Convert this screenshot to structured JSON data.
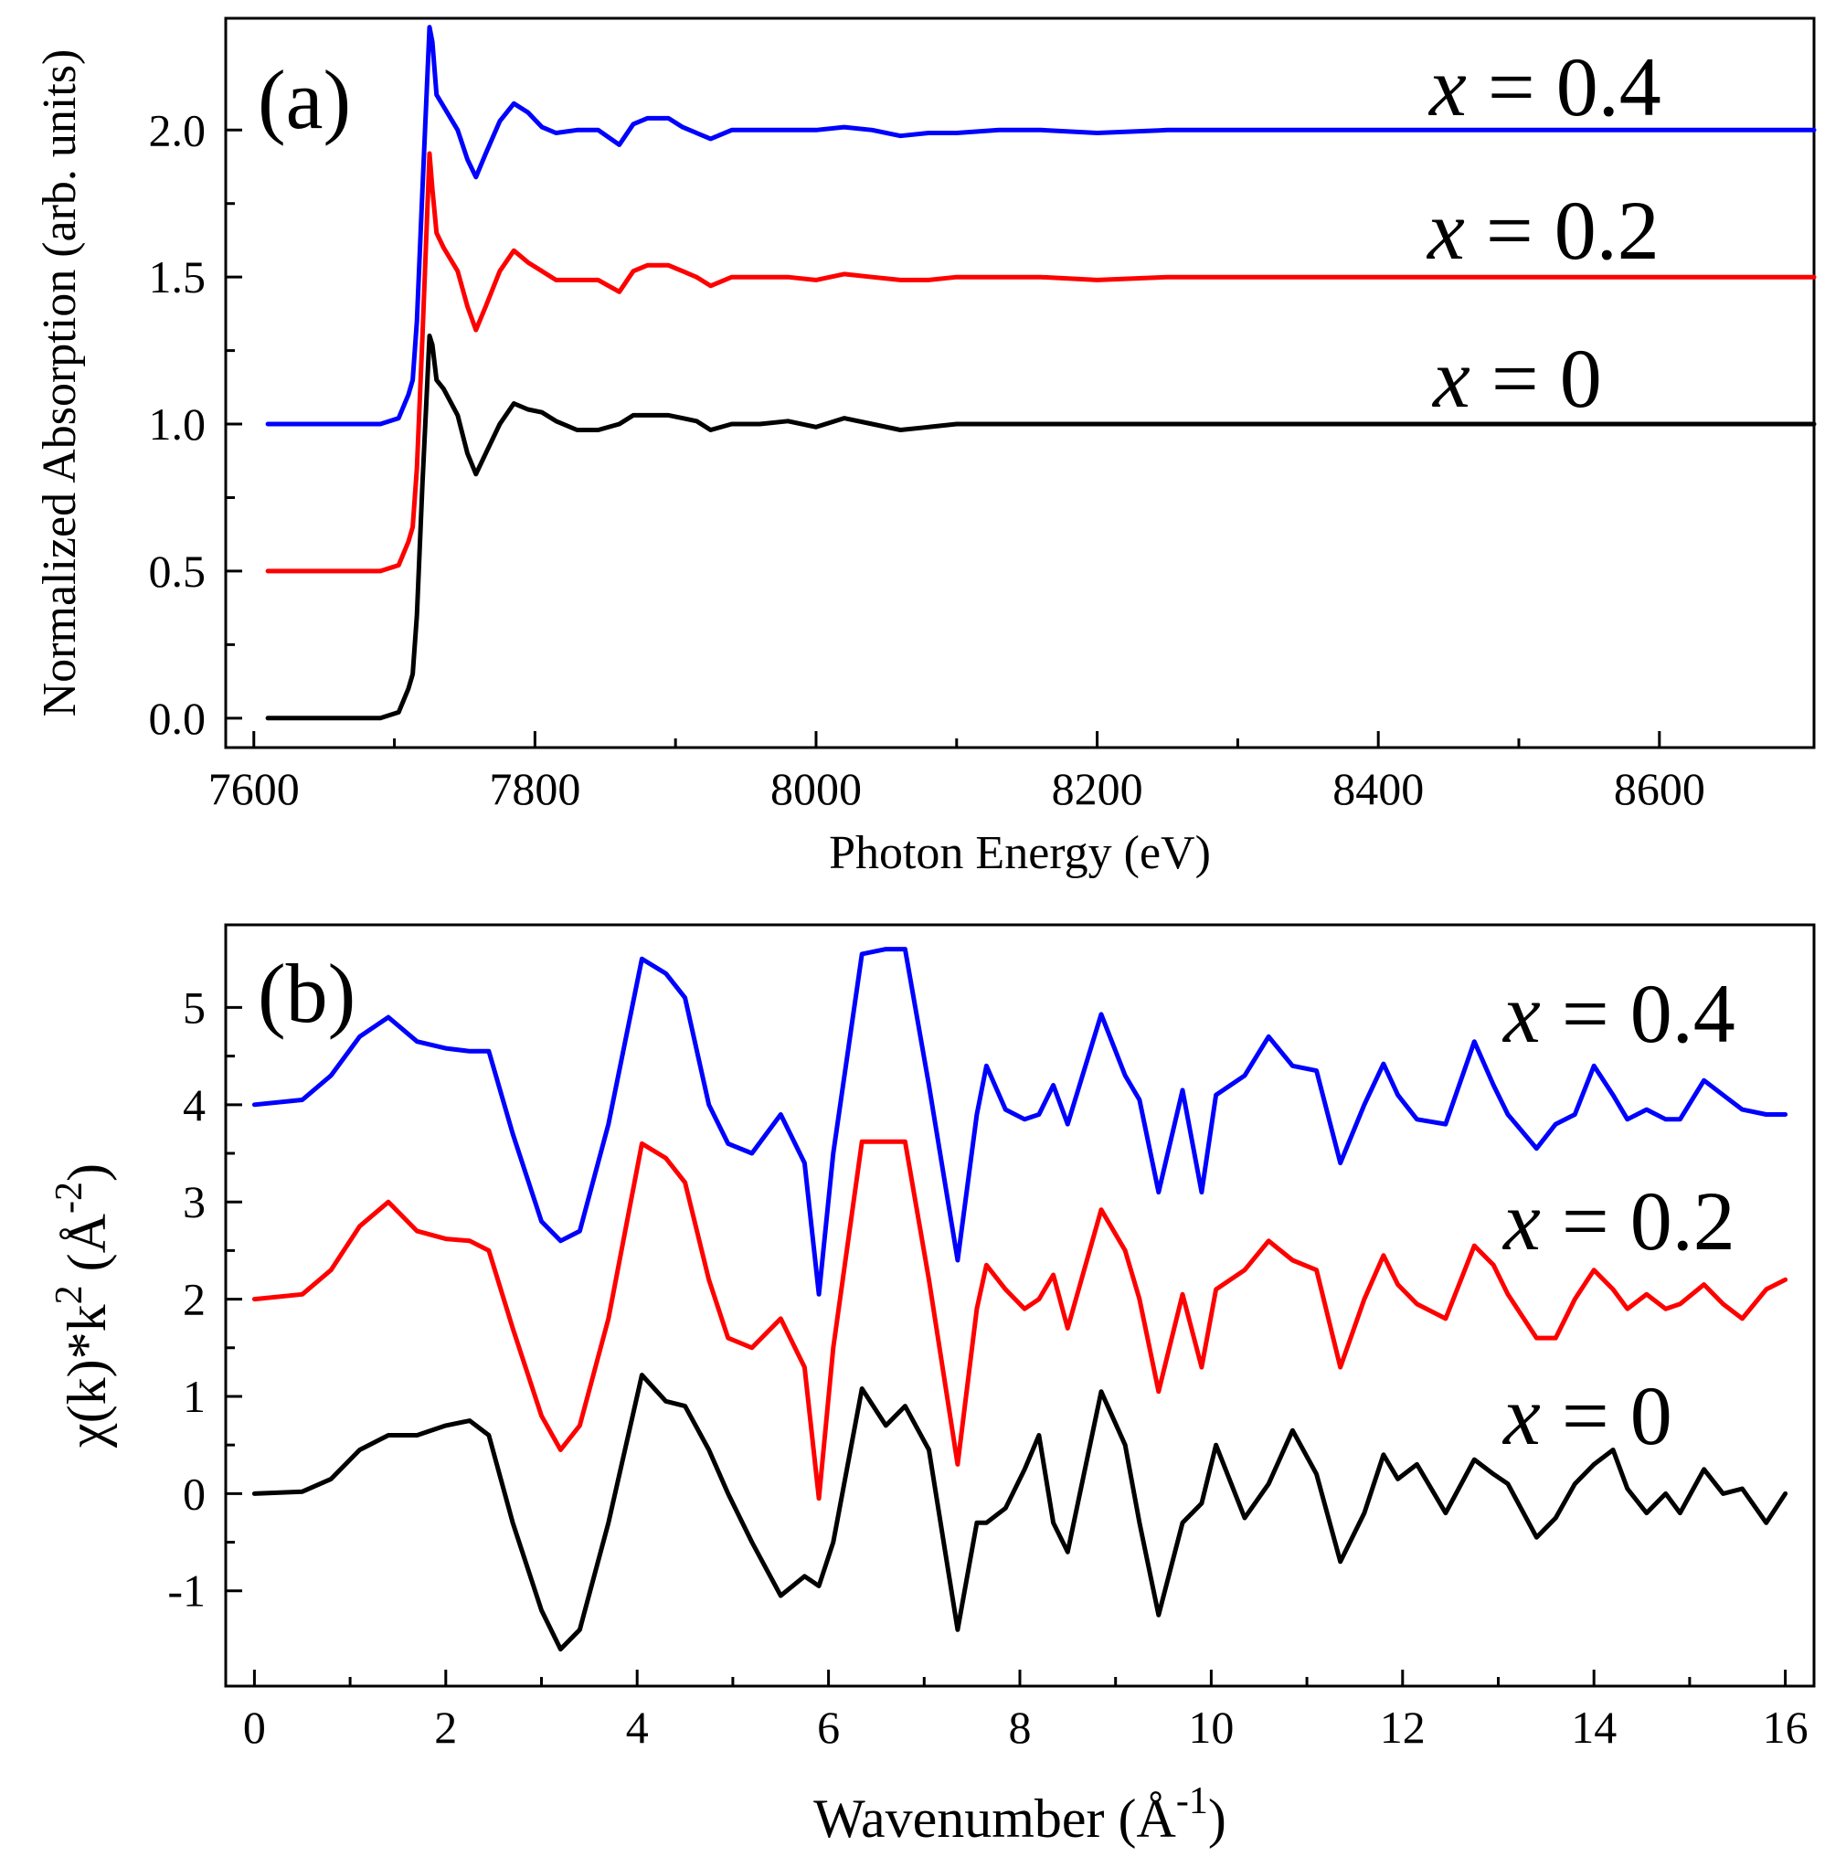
{
  "chart_data": [
    {
      "panel": "(a)",
      "type": "line",
      "xlabel": "Photon Energy (eV)",
      "ylabel": "Normalized Absorption (arb. units)",
      "xlim": [
        7580,
        8710
      ],
      "ylim": [
        -0.1,
        2.38
      ],
      "xticks": [
        7600,
        7800,
        8000,
        8200,
        8400,
        8600
      ],
      "xtick_labels": [
        "7600",
        "7800",
        "8000",
        "8200",
        "8400",
        "8600"
      ],
      "yticks": [
        0,
        0.5,
        1,
        1.5,
        2
      ],
      "ytick_labels": [
        "0.0",
        "0.5",
        "1.0",
        "1.5",
        "2.0"
      ],
      "series": [
        {
          "name": "x = 0",
          "label_var": "x",
          "label_eq": " = 0",
          "color": "#000000",
          "offset": 0,
          "x": [
            7610,
            7650,
            7690,
            7703,
            7710,
            7713,
            7716,
            7720,
            7725,
            7727,
            7730,
            7735,
            7745,
            7752,
            7758,
            7765,
            7775,
            7785,
            7795,
            7805,
            7815,
            7830,
            7845,
            7860,
            7870,
            7880,
            7895,
            7905,
            7915,
            7925,
            7940,
            7960,
            7980,
            8000,
            8020,
            8040,
            8060,
            8080,
            8100,
            8130,
            8160,
            8200,
            8250,
            8300,
            8400,
            8500,
            8600,
            8710
          ],
          "y": [
            0,
            0,
            0,
            0.02,
            0.1,
            0.15,
            0.35,
            0.8,
            1.3,
            1.27,
            1.15,
            1.12,
            1.03,
            0.9,
            0.83,
            0.9,
            1.0,
            1.07,
            1.05,
            1.04,
            1.01,
            0.98,
            0.98,
            1.0,
            1.03,
            1.03,
            1.03,
            1.02,
            1.01,
            0.98,
            1.0,
            1.0,
            1.01,
            0.99,
            1.02,
            1.0,
            0.98,
            0.99,
            1.0,
            1.0,
            1.0,
            1.0,
            1.0,
            1.0,
            1.0,
            1.0,
            1.0,
            1.0
          ]
        },
        {
          "name": "x = 0.2",
          "label_var": "x",
          "label_eq": " = 0.2",
          "color": "#ff0000",
          "offset": 0.5,
          "x": [
            7610,
            7650,
            7690,
            7703,
            7710,
            7713,
            7716,
            7720,
            7725,
            7727,
            7730,
            7735,
            7745,
            7752,
            7758,
            7765,
            7775,
            7785,
            7795,
            7805,
            7815,
            7830,
            7845,
            7860,
            7870,
            7880,
            7895,
            7905,
            7915,
            7925,
            7940,
            7960,
            7980,
            8000,
            8020,
            8040,
            8060,
            8080,
            8100,
            8130,
            8160,
            8200,
            8250,
            8300,
            8400,
            8500,
            8600,
            8710
          ],
          "y": [
            0,
            0,
            0,
            0.02,
            0.1,
            0.15,
            0.35,
            0.8,
            1.42,
            1.3,
            1.15,
            1.1,
            1.02,
            0.9,
            0.82,
            0.9,
            1.02,
            1.09,
            1.05,
            1.02,
            0.99,
            0.99,
            0.99,
            0.95,
            1.02,
            1.04,
            1.04,
            1.02,
            1.0,
            0.97,
            1.0,
            1.0,
            1.0,
            0.99,
            1.01,
            1.0,
            0.99,
            0.99,
            1.0,
            1.0,
            1.0,
            0.99,
            1.0,
            1.0,
            1.0,
            1.0,
            1.0,
            1.0
          ]
        },
        {
          "name": "x = 0.4",
          "label_var": "x",
          "label_eq": " = 0.4",
          "color": "#0000ff",
          "offset": 1.0,
          "x": [
            7610,
            7650,
            7690,
            7703,
            7710,
            7713,
            7716,
            7720,
            7725,
            7727,
            7730,
            7735,
            7745,
            7752,
            7758,
            7765,
            7775,
            7785,
            7795,
            7805,
            7815,
            7830,
            7845,
            7860,
            7870,
            7880,
            7895,
            7905,
            7915,
            7925,
            7940,
            7960,
            7980,
            8000,
            8020,
            8040,
            8060,
            8080,
            8100,
            8130,
            8160,
            8200,
            8250,
            8300,
            8400,
            8500,
            8600,
            8710
          ],
          "y": [
            0,
            0,
            0,
            0.02,
            0.1,
            0.15,
            0.35,
            0.8,
            1.35,
            1.3,
            1.12,
            1.08,
            1.0,
            0.9,
            0.84,
            0.92,
            1.03,
            1.09,
            1.06,
            1.01,
            0.99,
            1.0,
            1.0,
            0.95,
            1.02,
            1.04,
            1.04,
            1.01,
            0.99,
            0.97,
            1.0,
            1.0,
            1.0,
            1.0,
            1.01,
            1.0,
            0.98,
            0.99,
            0.99,
            1.0,
            1.0,
            0.99,
            1.0,
            1.0,
            1.0,
            1.0,
            1.0,
            1.0
          ]
        }
      ]
    },
    {
      "panel": "(b)",
      "type": "line",
      "xlabel_main": "Wavenumber (Å",
      "xlabel_sup": "-1",
      "xlabel_end": ")",
      "ylabel_main": "χ(k)*k",
      "ylabel_sup1": "2",
      "ylabel_mid": " (Å",
      "ylabel_sup2": "-2",
      "ylabel_end": ")",
      "xlim": [
        -0.3,
        16.3
      ],
      "ylim": [
        -1.98,
        5.85
      ],
      "xticks": [
        0,
        2,
        4,
        6,
        8,
        10,
        12,
        14,
        16
      ],
      "xtick_labels": [
        "0",
        "2",
        "4",
        "6",
        "8",
        "10",
        "12",
        "14",
        "16"
      ],
      "yticks": [
        -1,
        0,
        1,
        2,
        3,
        4,
        5
      ],
      "ytick_labels": [
        "-1",
        "0",
        "1",
        "2",
        "3",
        "4",
        "5"
      ],
      "series": [
        {
          "name": "x = 0",
          "label_var": "x",
          "label_eq": " = 0",
          "color": "#000000",
          "offset": 0,
          "x": [
            0,
            0.5,
            0.8,
            1.1,
            1.4,
            1.7,
            2.0,
            2.25,
            2.45,
            2.7,
            3.0,
            3.2,
            3.4,
            3.7,
            4.05,
            4.3,
            4.5,
            4.75,
            4.95,
            5.2,
            5.5,
            5.75,
            5.9,
            6.05,
            6.35,
            6.6,
            6.8,
            7.05,
            7.35,
            7.55,
            7.65,
            7.85,
            8.05,
            8.2,
            8.35,
            8.5,
            8.85,
            9.1,
            9.25,
            9.45,
            9.7,
            9.9,
            10.05,
            10.35,
            10.6,
            10.85,
            11.1,
            11.35,
            11.6,
            11.8,
            11.95,
            12.15,
            12.45,
            12.75,
            12.95,
            13.1,
            13.4,
            13.6,
            13.8,
            14.0,
            14.2,
            14.35,
            14.55,
            14.75,
            14.9,
            15.15,
            15.35,
            15.55,
            15.8,
            16.0
          ],
          "y": [
            0,
            0.02,
            0.15,
            0.45,
            0.6,
            0.6,
            0.7,
            0.75,
            0.6,
            -0.3,
            -1.2,
            -1.6,
            -1.4,
            -0.3,
            1.22,
            0.95,
            0.9,
            0.45,
            0.0,
            -0.5,
            -1.05,
            -0.85,
            -0.95,
            -0.5,
            1.08,
            0.7,
            0.9,
            0.45,
            -1.4,
            -0.3,
            -0.3,
            -0.15,
            0.25,
            0.6,
            -0.3,
            -0.6,
            1.05,
            0.5,
            -0.3,
            -1.25,
            -0.3,
            -0.1,
            0.5,
            -0.25,
            0.1,
            0.65,
            0.2,
            -0.7,
            -0.2,
            0.4,
            0.15,
            0.3,
            -0.2,
            0.35,
            0.2,
            0.1,
            -0.45,
            -0.25,
            0.1,
            0.3,
            0.45,
            0.05,
            -0.2,
            0.0,
            -0.2,
            0.25,
            0.0,
            0.05,
            -0.3,
            0.0
          ]
        },
        {
          "name": "x = 0.2",
          "label_var": "x",
          "label_eq": " = 0.2",
          "color": "#ff0000",
          "offset": 2.0,
          "x": [
            0,
            0.5,
            0.8,
            1.1,
            1.4,
            1.7,
            2.0,
            2.25,
            2.45,
            2.7,
            3.0,
            3.2,
            3.4,
            3.7,
            4.05,
            4.3,
            4.5,
            4.75,
            4.95,
            5.2,
            5.5,
            5.75,
            5.9,
            6.05,
            6.35,
            6.6,
            6.8,
            7.05,
            7.35,
            7.55,
            7.65,
            7.85,
            8.05,
            8.2,
            8.35,
            8.5,
            8.85,
            9.1,
            9.25,
            9.45,
            9.7,
            9.9,
            10.05,
            10.35,
            10.6,
            10.85,
            11.1,
            11.35,
            11.6,
            11.8,
            11.95,
            12.15,
            12.45,
            12.75,
            12.95,
            13.1,
            13.4,
            13.6,
            13.8,
            14.0,
            14.2,
            14.35,
            14.55,
            14.75,
            14.9,
            15.15,
            15.35,
            15.55,
            15.8,
            16.0
          ],
          "y": [
            0,
            0.05,
            0.3,
            0.75,
            1.0,
            0.7,
            0.62,
            0.6,
            0.5,
            -0.3,
            -1.2,
            -1.55,
            -1.3,
            -0.2,
            1.6,
            1.45,
            1.2,
            0.2,
            -0.4,
            -0.5,
            -0.2,
            -0.7,
            -2.05,
            -0.5,
            1.62,
            1.62,
            1.62,
            0.2,
            -1.7,
            -0.1,
            0.35,
            0.1,
            -0.1,
            0.0,
            0.25,
            -0.3,
            0.92,
            0.5,
            0.0,
            -0.95,
            0.05,
            -0.7,
            0.1,
            0.3,
            0.6,
            0.4,
            0.3,
            -0.7,
            0.0,
            0.45,
            0.15,
            -0.05,
            -0.2,
            0.55,
            0.35,
            0.05,
            -0.4,
            -0.4,
            0.0,
            0.3,
            0.1,
            -0.1,
            0.05,
            -0.1,
            -0.05,
            0.15,
            -0.05,
            -0.2,
            0.1,
            0.2
          ]
        },
        {
          "name": "x = 0.4",
          "label_var": "x",
          "label_eq": " = 0.4",
          "color": "#0000ff",
          "offset": 4.0,
          "x": [
            0,
            0.5,
            0.8,
            1.1,
            1.4,
            1.7,
            2.0,
            2.25,
            2.45,
            2.7,
            3.0,
            3.2,
            3.4,
            3.7,
            4.05,
            4.3,
            4.5,
            4.75,
            4.95,
            5.2,
            5.5,
            5.75,
            5.9,
            6.05,
            6.35,
            6.6,
            6.8,
            7.05,
            7.35,
            7.55,
            7.65,
            7.85,
            8.05,
            8.2,
            8.35,
            8.5,
            8.85,
            9.1,
            9.25,
            9.45,
            9.7,
            9.9,
            10.05,
            10.35,
            10.6,
            10.85,
            11.1,
            11.35,
            11.6,
            11.8,
            11.95,
            12.15,
            12.45,
            12.75,
            12.95,
            13.1,
            13.4,
            13.6,
            13.8,
            14.0,
            14.2,
            14.35,
            14.55,
            14.75,
            14.9,
            15.15,
            15.35,
            15.55,
            15.8,
            16.0
          ],
          "y": [
            0,
            0.05,
            0.3,
            0.7,
            0.9,
            0.65,
            0.58,
            0.55,
            0.55,
            -0.3,
            -1.2,
            -1.4,
            -1.3,
            -0.2,
            1.5,
            1.35,
            1.1,
            0.0,
            -0.4,
            -0.5,
            -0.1,
            -0.6,
            -1.95,
            -0.5,
            1.55,
            1.6,
            1.6,
            0.2,
            -1.6,
            -0.1,
            0.4,
            -0.05,
            -0.15,
            -0.1,
            0.2,
            -0.2,
            0.93,
            0.3,
            0.05,
            -0.9,
            0.15,
            -0.9,
            0.1,
            0.3,
            0.7,
            0.4,
            0.35,
            -0.6,
            0.0,
            0.42,
            0.1,
            -0.15,
            -0.2,
            0.65,
            0.2,
            -0.1,
            -0.45,
            -0.2,
            -0.1,
            0.4,
            0.1,
            -0.15,
            -0.05,
            -0.15,
            -0.15,
            0.25,
            0.1,
            -0.05,
            -0.1,
            -0.1
          ]
        }
      ]
    }
  ]
}
